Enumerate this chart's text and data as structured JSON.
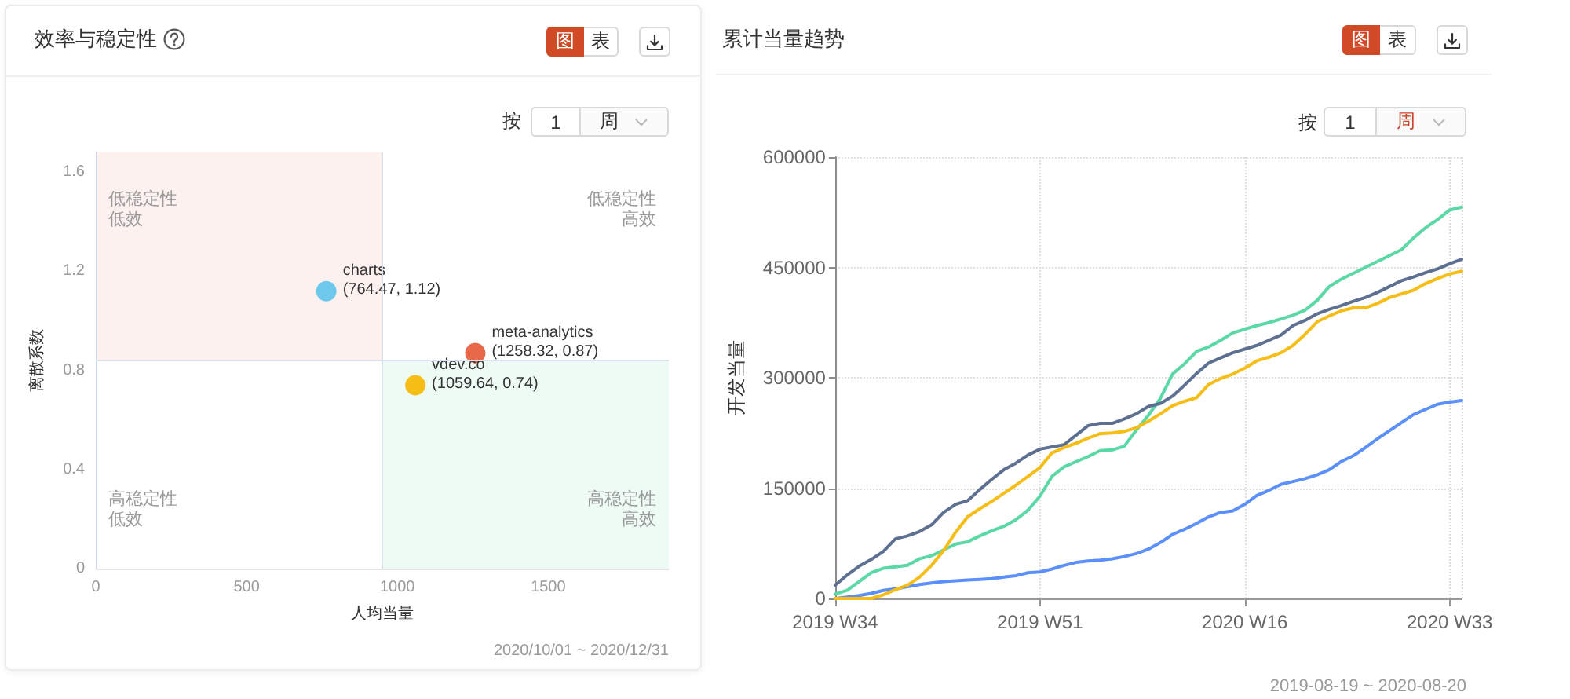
{
  "chart_data": [
    {
      "type": "scatter",
      "title": "效率与稳定性",
      "xlabel": "人均当量",
      "ylabel": "离散系数",
      "series": [
        {
          "name": "charts",
          "color": "#6dc8ec",
          "x": [
            764.47
          ],
          "values": [
            1.12
          ],
          "value_labels": [
            "(764.47, 1.12)"
          ]
        },
        {
          "name": "meta-analytics",
          "color": "#e8684a",
          "x": [
            1258.32
          ],
          "values": [
            0.87
          ],
          "value_labels": [
            "(1258.32, 0.87)"
          ]
        },
        {
          "name": "vdev.co",
          "color": "#f6bd16",
          "x": [
            1059.64
          ],
          "values": [
            0.74
          ],
          "value_labels": [
            "(1059.64, 0.74)"
          ]
        }
      ],
      "xlim": [
        0,
        1900
      ],
      "xticks": [
        0,
        500,
        1000,
        1500
      ],
      "ylim": [
        0,
        1.68
      ],
      "yticks": [
        0,
        0.4,
        0.8,
        1.2,
        1.6
      ],
      "ref_lines": [
        {
          "axis": "x",
          "value": 950,
          "color": "#dde2ea"
        },
        {
          "axis": "y",
          "value": 0.84,
          "color": "#dde2ea"
        }
      ],
      "grid": false,
      "annotations": [
        "图",
        "表",
        "按",
        "1",
        "周",
        "2020/10/01 ~ 2020/12/31",
        "低稳定性",
        "低效",
        "低稳定性",
        "高效",
        "高稳定性",
        "低效",
        "高稳定性",
        "高效"
      ]
    },
    {
      "type": "line",
      "title": "累计当量趋势",
      "ylabel": "开发当量",
      "categories": [
        "2019 W34",
        null,
        null,
        null,
        null,
        null,
        null,
        null,
        null,
        null,
        null,
        null,
        null,
        null,
        null,
        null,
        null,
        "2019 W51",
        null,
        null,
        null,
        null,
        null,
        null,
        null,
        null,
        null,
        null,
        null,
        null,
        null,
        null,
        null,
        null,
        "2020 W16",
        null,
        null,
        null,
        null,
        null,
        null,
        null,
        null,
        null,
        null,
        null,
        null,
        null,
        null,
        null,
        null,
        "2020 W33",
        null
      ],
      "series": [
        {
          "color": "#5b8ff9",
          "values": [
            0,
            2000,
            4000,
            7000,
            11000,
            13000,
            16000,
            19000,
            21000,
            23000,
            24000,
            25000,
            26000,
            27000,
            29000,
            31000,
            35000,
            36000,
            40000,
            45000,
            49000,
            51000,
            52000,
            54000,
            57000,
            61000,
            67000,
            76000,
            87000,
            94000,
            102000,
            111000,
            117000,
            119000,
            128000,
            140000,
            147000,
            155000,
            159000,
            163000,
            168000,
            175000,
            186000,
            194000,
            205000,
            217000,
            228000,
            239000,
            250000,
            257000,
            264000,
            267000,
            269000
          ]
        },
        {
          "color": "#5ad8a6",
          "values": [
            6000,
            11000,
            23000,
            35000,
            41000,
            43000,
            45000,
            54000,
            58000,
            66000,
            74000,
            77000,
            85000,
            92000,
            98000,
            107000,
            120000,
            139000,
            166000,
            179000,
            186000,
            193000,
            201000,
            202000,
            207000,
            229000,
            249000,
            272000,
            305000,
            319000,
            336000,
            342000,
            351000,
            361000,
            366000,
            371000,
            375000,
            380000,
            385000,
            392000,
            405000,
            424000,
            434000,
            442000,
            450000,
            458000,
            466000,
            474000,
            490000,
            504000,
            515000,
            528000,
            532000
          ]
        },
        {
          "color": "#5d7092",
          "values": [
            18000,
            32000,
            44000,
            53000,
            64000,
            81000,
            85000,
            91000,
            100000,
            117000,
            128000,
            133000,
            148000,
            162000,
            175000,
            184000,
            195000,
            203000,
            206000,
            209000,
            222000,
            235000,
            238000,
            238000,
            244000,
            251000,
            261000,
            265000,
            275000,
            290000,
            306000,
            320000,
            327000,
            334000,
            339000,
            344000,
            351000,
            358000,
            371000,
            378000,
            387000,
            393000,
            398000,
            404000,
            409000,
            416000,
            424000,
            432000,
            437000,
            443000,
            448000,
            455000,
            461000
          ]
        },
        {
          "color": "#f6bd16",
          "values": [
            0,
            0,
            0,
            0,
            5000,
            12000,
            18000,
            29000,
            45000,
            65000,
            90000,
            111000,
            122000,
            132000,
            143000,
            154000,
            166000,
            178000,
            198000,
            205000,
            211000,
            218000,
            224000,
            225000,
            227000,
            232000,
            241000,
            251000,
            262000,
            268000,
            273000,
            291000,
            299000,
            305000,
            313000,
            323000,
            328000,
            334000,
            344000,
            359000,
            376000,
            384000,
            391000,
            395000,
            395000,
            401000,
            409000,
            414000,
            419000,
            428000,
            435000,
            441000,
            445000
          ]
        }
      ],
      "ylim": [
        0,
        600000
      ],
      "yticks": [
        0,
        150000,
        300000,
        450000,
        600000
      ],
      "grid": true,
      "line_style": "solid",
      "annotations": [
        "图",
        "表",
        "按",
        "1",
        "周",
        "2019-08-19 ~ 2020-08-20"
      ]
    }
  ]
}
